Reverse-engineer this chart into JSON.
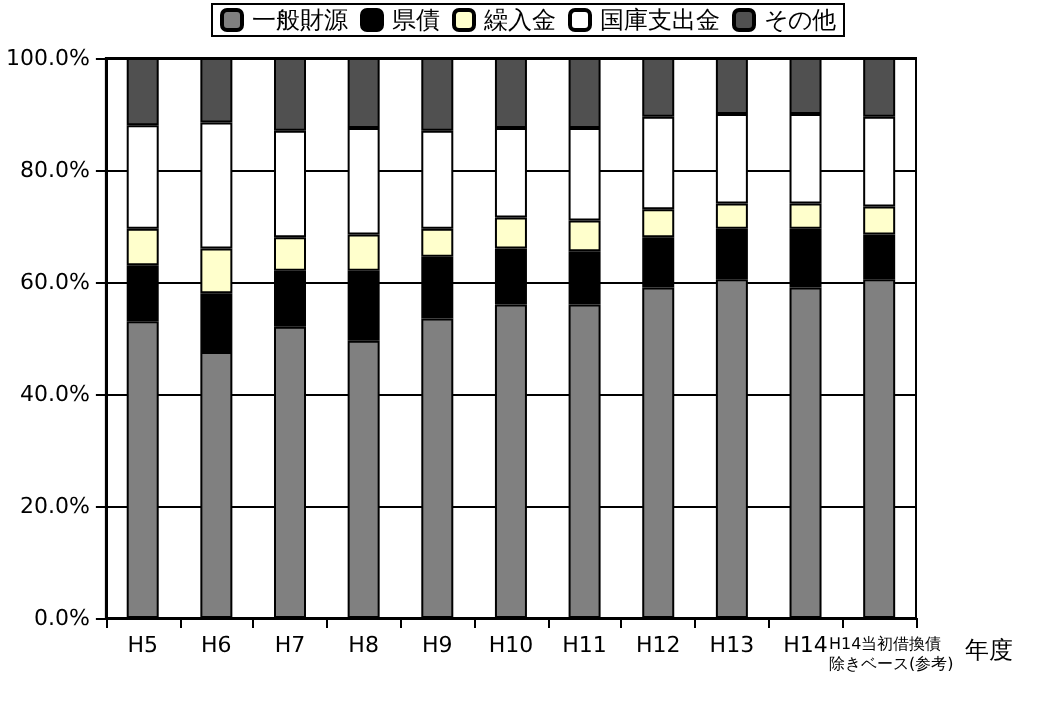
{
  "chart_data": {
    "type": "bar",
    "stacked": true,
    "xlabel": "年度",
    "categories": [
      "H5",
      "H6",
      "H7",
      "H8",
      "H9",
      "H10",
      "H11",
      "H12",
      "H13",
      "H14",
      "H14当初借換債除きベース(参考)"
    ],
    "series": [
      {
        "name": "一般財源",
        "color": "#808080",
        "values": [
          53,
          47.5,
          52,
          49.5,
          53.5,
          56,
          56,
          59,
          60.5,
          59,
          60.5
        ]
      },
      {
        "name": "県債",
        "color": "#000000",
        "values": [
          10,
          10.5,
          10,
          12.5,
          11,
          10,
          9.5,
          9,
          9,
          10.5,
          8
        ]
      },
      {
        "name": "繰入金",
        "color": "#ffffcc",
        "values": [
          6.5,
          8,
          6,
          6.5,
          5,
          5.5,
          5.5,
          5,
          4.5,
          4.5,
          5
        ]
      },
      {
        "name": "国庫支出金",
        "color": "#ffffff",
        "values": [
          18.5,
          22.5,
          19,
          19,
          17.5,
          16,
          16.5,
          16.5,
          16,
          16,
          16
        ]
      },
      {
        "name": "その他",
        "color": "#505050",
        "values": [
          12,
          11.5,
          13,
          12.5,
          13,
          12.5,
          12.5,
          10.5,
          10,
          10,
          10.5
        ]
      }
    ],
    "ylim": [
      0,
      100
    ],
    "yticks": [
      {
        "value": 0,
        "label": "0.0%"
      },
      {
        "value": 20,
        "label": "20.0%"
      },
      {
        "value": 40,
        "label": "40.0%"
      },
      {
        "value": 60,
        "label": "60.0%"
      },
      {
        "value": 80,
        "label": "80.0%"
      },
      {
        "value": 100,
        "label": "100.0%"
      }
    ],
    "grid": "y",
    "legend": "top"
  }
}
